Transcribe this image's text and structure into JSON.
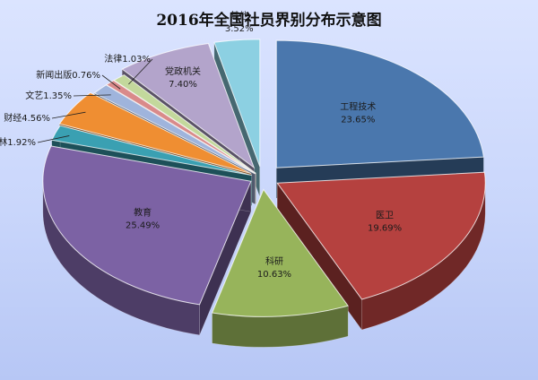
{
  "chart_data": {
    "type": "pie",
    "title": "2016年全国社员界别分布示意图",
    "slices": [
      {
        "name": "工程技术",
        "pct_label": "23.65%",
        "value": 23.65,
        "color": "#4a77ad"
      },
      {
        "name": "医卫",
        "pct_label": "19.69%",
        "value": 19.69,
        "color": "#b5413f"
      },
      {
        "name": "科研",
        "pct_label": "10.63%",
        "value": 10.63,
        "color": "#97b45b"
      },
      {
        "name": "教育",
        "pct_label": "25.49%",
        "value": 25.49,
        "color": "#7c62a4"
      },
      {
        "name": "农林",
        "pct_label": "1.92%",
        "value": 1.92,
        "color": "#3aa0b2"
      },
      {
        "name": "财经",
        "pct_label": "4.56%",
        "value": 4.56,
        "color": "#ef8e32"
      },
      {
        "name": "文艺",
        "pct_label": "1.35%",
        "value": 1.35,
        "color": "#9fb4dc"
      },
      {
        "name": "新闻出版",
        "pct_label": "0.76%",
        "value": 0.76,
        "color": "#d98a8a"
      },
      {
        "name": "法律",
        "pct_label": "1.03%",
        "value": 1.03,
        "color": "#c3d89c"
      },
      {
        "name": "党政机关",
        "pct_label": "7.40%",
        "value": 7.4,
        "color": "#b3a4cb"
      },
      {
        "name": "其他",
        "pct_label": "3.52%",
        "value": 3.52,
        "color": "#8cd0e2"
      }
    ]
  }
}
